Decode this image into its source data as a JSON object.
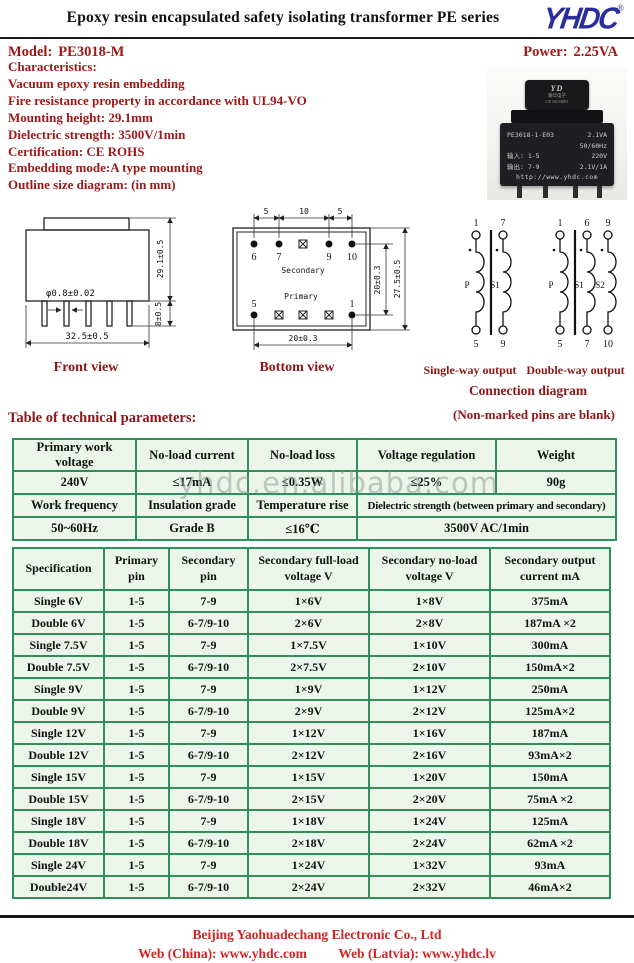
{
  "header": {
    "title": "Epoxy resin encapsulated safety isolating transformer PE series",
    "logo_text": "YHDC",
    "reg_mark": "®"
  },
  "model_row": {
    "model_label": "Model:",
    "model_value": "PE3018-M",
    "power_label": "Power:",
    "power_value": "2.25VA"
  },
  "characteristics": {
    "heading": "Characteristics:",
    "items": [
      "Vacuum epoxy resin embedding",
      "Fire resistance property in accordance with UL94-VO",
      "Mounting height: 29.1mm",
      "Dielectric strength: 3500V/1min",
      "Certification: CE ROHS",
      "Embedding mode:A type mounting",
      "Outline size diagram: (in mm)"
    ]
  },
  "photo": {
    "cap_logo": "YD",
    "cap_sub1": "耀华电子",
    "cap_sub2": "CE ISO9001",
    "line1_l": "PE3018-1-E03",
    "line1_r": "2.1VA",
    "line2": "50/60Hz",
    "line3_l": "输入: 1-5",
    "line3_r": "220V",
    "line4_l": "输出: 7-9",
    "line4_r": "2.1V/1A",
    "line5": "http://www.yhdc.com"
  },
  "front_view": {
    "label": "Front view",
    "dim_pin_dia": "φ0.8±0.02",
    "dim_height": "29.1±0.5",
    "dim_pin_len": "8±0.5",
    "dim_width": "32.5±0.5"
  },
  "bottom_view": {
    "label": "Bottom view",
    "dim_top_left": "5",
    "dim_top_mid": "10",
    "dim_top_right": "5",
    "dim_rows": "20±0.3",
    "dim_height": "27.5±0.5",
    "dim_width": "20±0.3",
    "pin6": "6",
    "pin7": "7",
    "pin9": "9",
    "pin10": "10",
    "pin5": "5",
    "pin1": "1",
    "secondary": "Secondary",
    "primary": "Primary"
  },
  "connection": {
    "single_label": "Single-way output",
    "double_label": "Double-way output",
    "title": "Connection diagram",
    "note": "(Non-marked pins are blank)",
    "single": {
      "t1": "1",
      "t2": "7",
      "b1": "5",
      "b2": "9",
      "c1": "P",
      "c2": "S1"
    },
    "double": {
      "t1": "1",
      "t2": "6",
      "t3": "9",
      "b1": "5",
      "b2": "7",
      "b3": "10",
      "c1": "P",
      "c2": "S1",
      "c3": "S2"
    }
  },
  "sections": {
    "tech_title": "Table of technical parameters:"
  },
  "watermark": "yhdc.en.alibaba.com",
  "tech_table": {
    "rows": [
      [
        "Primary work voltage",
        "No-load current",
        "No-load loss",
        "Voltage regulation",
        "Weight"
      ],
      [
        "240V",
        "≤17mA",
        "≤0.35W",
        "≤25%",
        "90g"
      ],
      [
        "Work frequency",
        "Insulation grade",
        "Temperature rise",
        {
          "t": "Dielectric strength (between primary and secondary)",
          "colspan": 2,
          "cls": "cond"
        }
      ],
      [
        "50~60Hz",
        "Grade B",
        "≤16℃",
        {
          "t": "3500V AC/1min",
          "colspan": 2
        }
      ]
    ]
  },
  "spec_table": {
    "header_rows": [
      [
        "Specification",
        "Primary pin",
        "Secondary pin",
        "Secondary full-load voltage V",
        "Secondary no-load voltage V",
        "Secondary output current mA"
      ]
    ],
    "rows": [
      [
        "Single 6V",
        "1-5",
        "7-9",
        "1×6V",
        "1×8V",
        "375mA"
      ],
      [
        "Double 6V",
        "1-5",
        "6-7/9-10",
        "2×6V",
        "2×8V",
        "187mA ×2"
      ],
      [
        "Single 7.5V",
        "1-5",
        "7-9",
        "1×7.5V",
        "1×10V",
        "300mA"
      ],
      [
        "Double 7.5V",
        "1-5",
        "6-7/9-10",
        "2×7.5V",
        "2×10V",
        "150mA×2"
      ],
      [
        "Single 9V",
        "1-5",
        "7-9",
        "1×9V",
        "1×12V",
        "250mA"
      ],
      [
        "Double 9V",
        "1-5",
        "6-7/9-10",
        "2×9V",
        "2×12V",
        "125mA×2"
      ],
      [
        "Single 12V",
        "1-5",
        "7-9",
        "1×12V",
        "1×16V",
        "187mA"
      ],
      [
        "Double 12V",
        "1-5",
        "6-7/9-10",
        "2×12V",
        "2×16V",
        "93mA×2"
      ],
      [
        "Single 15V",
        "1-5",
        "7-9",
        "1×15V",
        "1×20V",
        "150mA"
      ],
      [
        "Double 15V",
        "1-5",
        "6-7/9-10",
        "2×15V",
        "2×20V",
        "75mA ×2"
      ],
      [
        "Single 18V",
        "1-5",
        "7-9",
        "1×18V",
        "1×24V",
        "125mA"
      ],
      [
        "Double 18V",
        "1-5",
        "6-7/9-10",
        "2×18V",
        "2×24V",
        "62mA ×2"
      ],
      [
        "Single 24V",
        "1-5",
        "7-9",
        "1×24V",
        "1×32V",
        "93mA"
      ],
      [
        "Double24V",
        "1-5",
        "6-7/9-10",
        "2×24V",
        "2×32V",
        "46mA×2"
      ]
    ]
  },
  "footer": {
    "company": "Beijing Yaohuadechang Electronic Co., Ltd",
    "web_china": "Web (China): www.yhdc.com",
    "web_latvia": "Web (Latvia): www.yhdc.lv"
  },
  "colors": {
    "heading_red": "#9e1717",
    "footer_red": "#d12424",
    "table_border_green": "#2f8f5a",
    "table_cell_green": "#ebf5ea",
    "logo_blue": "#2a2e9c"
  }
}
